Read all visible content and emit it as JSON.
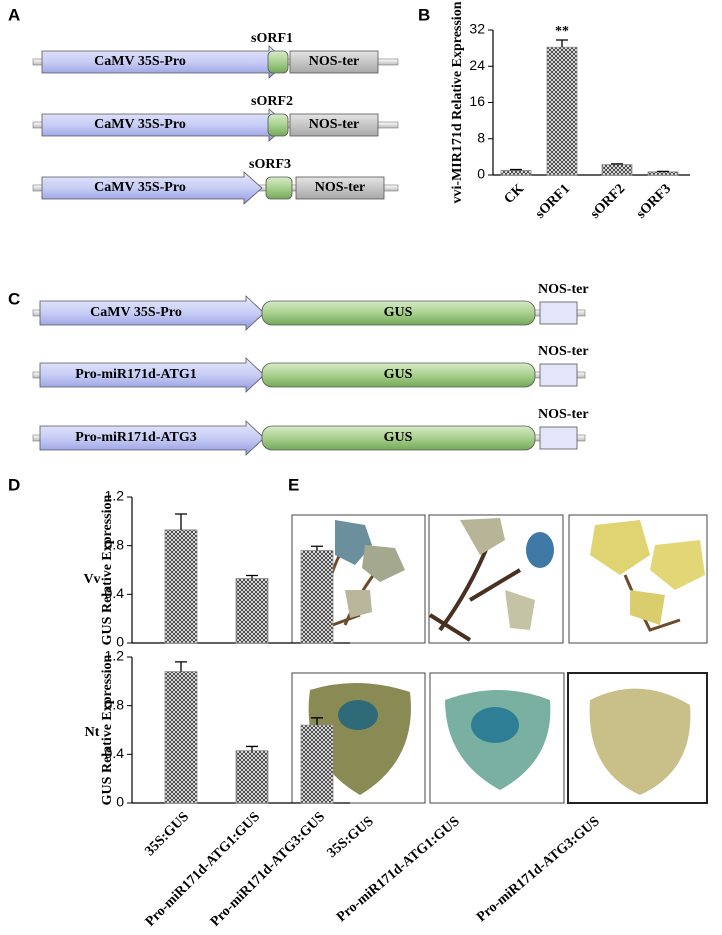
{
  "panel_labels": [
    "A",
    "B",
    "C",
    "D",
    "E"
  ],
  "construct_a": {
    "rows": [
      {
        "promoter": "CaMV 35S-Pro",
        "orf": "sORF1",
        "terminator": "NOS-ter"
      },
      {
        "promoter": "CaMV 35S-Pro",
        "orf": "sORF2",
        "terminator": "NOS-ter"
      },
      {
        "promoter": "CaMV 35S-Pro",
        "orf": "sORF3",
        "terminator": "NOS-ter"
      }
    ]
  },
  "construct_c": {
    "rows": [
      {
        "promoter": "CaMV 35S-Pro",
        "gene": "GUS",
        "terminator": "NOS-ter"
      },
      {
        "promoter": "Pro-miR171d-ATG1",
        "gene": "GUS",
        "terminator": "NOS-ter"
      },
      {
        "promoter": "Pro-miR171d-ATG3",
        "gene": "GUS",
        "terminator": "NOS-ter"
      }
    ]
  },
  "chart_data": [
    {
      "type": "bar",
      "ylabel": "vvi-MIR171d Relative Expression",
      "categories": [
        "CK",
        "sORF1",
        "sORF2",
        "sORF3"
      ],
      "values": [
        1.0,
        28.2,
        2.3,
        0.7
      ],
      "errors": [
        0.2,
        1.6,
        0.15,
        0.1
      ],
      "annotations": [
        null,
        "**",
        null,
        null
      ],
      "color": "#8a8a8a",
      "ylim": [
        0,
        32
      ],
      "yticks": [
        0,
        8,
        16,
        24,
        32
      ]
    },
    {
      "type": "bar",
      "row_label": "Vv",
      "ylabel": "GUS Relative Expression",
      "categories": [
        null,
        null,
        null
      ],
      "values": [
        0.93,
        0.53,
        0.76
      ],
      "errors": [
        0.13,
        0.025,
        0.035
      ],
      "color": "#8a8a8a",
      "ylim": [
        0,
        1.2
      ],
      "yticks": [
        0,
        0.4,
        0.8,
        1.2
      ]
    },
    {
      "type": "bar",
      "row_label": "Nt",
      "ylabel": "GUS Relative Expression",
      "categories": [
        "35S:GUS",
        "Pro-miR171d-ATG1:GUS",
        "Pro-miR171d-ATG3:GUS"
      ],
      "values": [
        1.08,
        0.43,
        0.64
      ],
      "errors": [
        0.08,
        0.035,
        0.06
      ],
      "color": "#8a8a8a",
      "ylim": [
        0,
        1.2
      ],
      "yticks": [
        0,
        0.4,
        0.8,
        1.2
      ]
    }
  ],
  "staining": {
    "labels": [
      "35S:GUS",
      "Pro-miR171d-ATG1:GUS",
      "Pro-miR171d-ATG3:GUS"
    ]
  }
}
